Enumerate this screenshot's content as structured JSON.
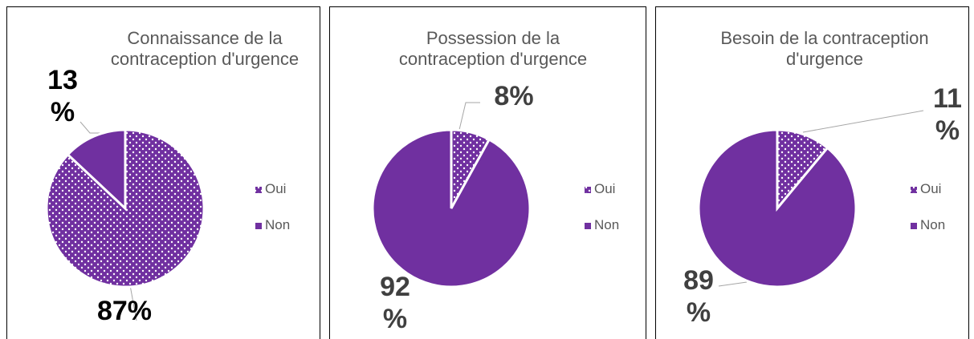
{
  "chart_data": [
    {
      "type": "pie",
      "title": "Connaissance de la contraception d'urgence",
      "categories": [
        "Oui",
        "Non"
      ],
      "values": [
        87,
        13
      ],
      "value_labels": [
        "87%",
        "13 %"
      ],
      "colors": [
        "#7030a0",
        "#7030a0"
      ],
      "patterns": [
        "dots",
        "solid"
      ]
    },
    {
      "type": "pie",
      "title": "Possession de la contraception d'urgence",
      "categories": [
        "Oui",
        "Non"
      ],
      "values": [
        8,
        92
      ],
      "value_labels": [
        "8%",
        "92 %"
      ],
      "colors": [
        "#7030a0",
        "#7030a0"
      ],
      "patterns": [
        "dots",
        "solid"
      ]
    },
    {
      "type": "pie",
      "title": "Besoin de la contraception d'urgence",
      "categories": [
        "Oui",
        "Non"
      ],
      "values": [
        11,
        89
      ],
      "value_labels": [
        "11 %",
        "89 %"
      ],
      "colors": [
        "#7030a0",
        "#7030a0"
      ],
      "patterns": [
        "dots",
        "solid"
      ]
    }
  ]
}
